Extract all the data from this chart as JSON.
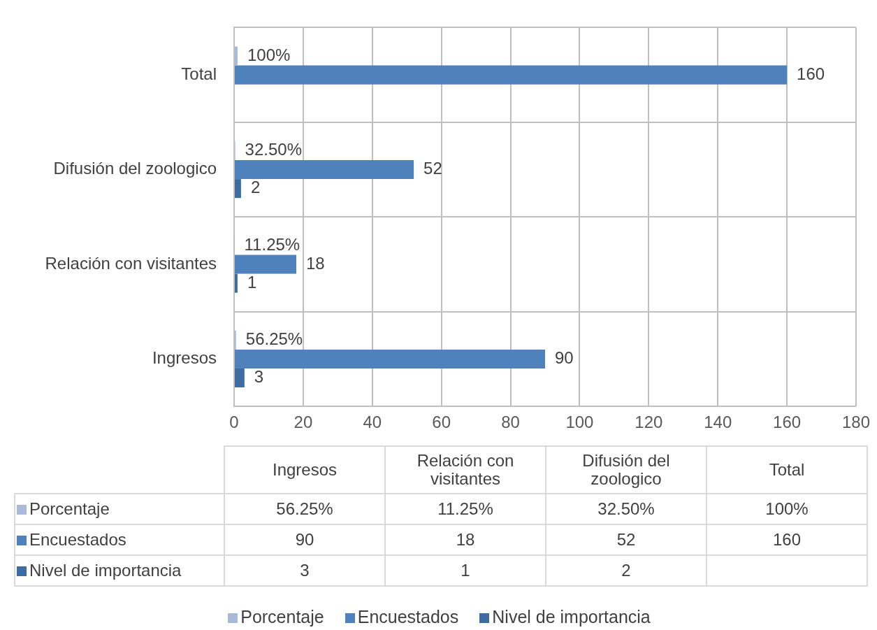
{
  "chart_data": {
    "type": "bar",
    "orientation": "horizontal",
    "categories": [
      "Total",
      "Difusión del zoologico",
      "Relación con visitantes",
      "Ingresos"
    ],
    "series": [
      {
        "name": "Porcentaje",
        "color": "#a9b9d8",
        "values": [
          1,
          0.325,
          0.1125,
          0.5625
        ],
        "value_labels": [
          "100%",
          "32.50%",
          "11.25%",
          "56.25%"
        ]
      },
      {
        "name": "Encuestados",
        "color": "#4f81bd",
        "values": [
          160,
          52,
          18,
          90
        ],
        "value_labels": [
          "160",
          "52",
          "18",
          "90"
        ]
      },
      {
        "name": "Nivel de importancia",
        "color": "#3e6ba0",
        "values": [
          null,
          2,
          1,
          3
        ],
        "value_labels": [
          null,
          "2",
          "1",
          "3"
        ]
      }
    ],
    "xlim": [
      0,
      180
    ],
    "xticks": [
      0,
      20,
      40,
      60,
      80,
      100,
      120,
      140,
      160,
      180
    ],
    "grid": true,
    "legend": "bottom"
  }
}
